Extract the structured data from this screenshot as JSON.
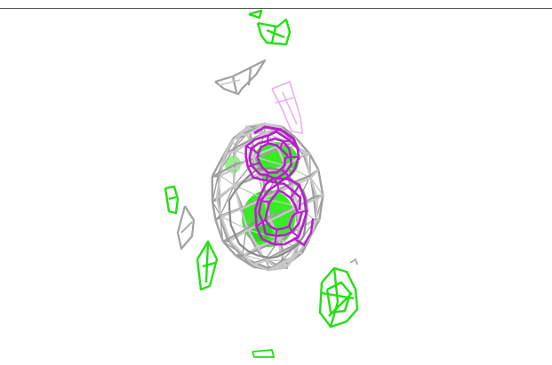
{
  "scene": {
    "background": "#ffffff",
    "colors": {
      "gray_mesh": "#a0a0a0",
      "gray_mesh_light": "#c8c8c8",
      "gray_mesh_dark": "#8a8a8a",
      "magenta_mesh": "#b81ecc",
      "magenta_mesh_light": "#e8b0ee",
      "green_mesh": "#22e011",
      "green_solid": "#35ee22",
      "green_solid_dark": "#28c81a",
      "top_border": "#555555"
    }
  }
}
